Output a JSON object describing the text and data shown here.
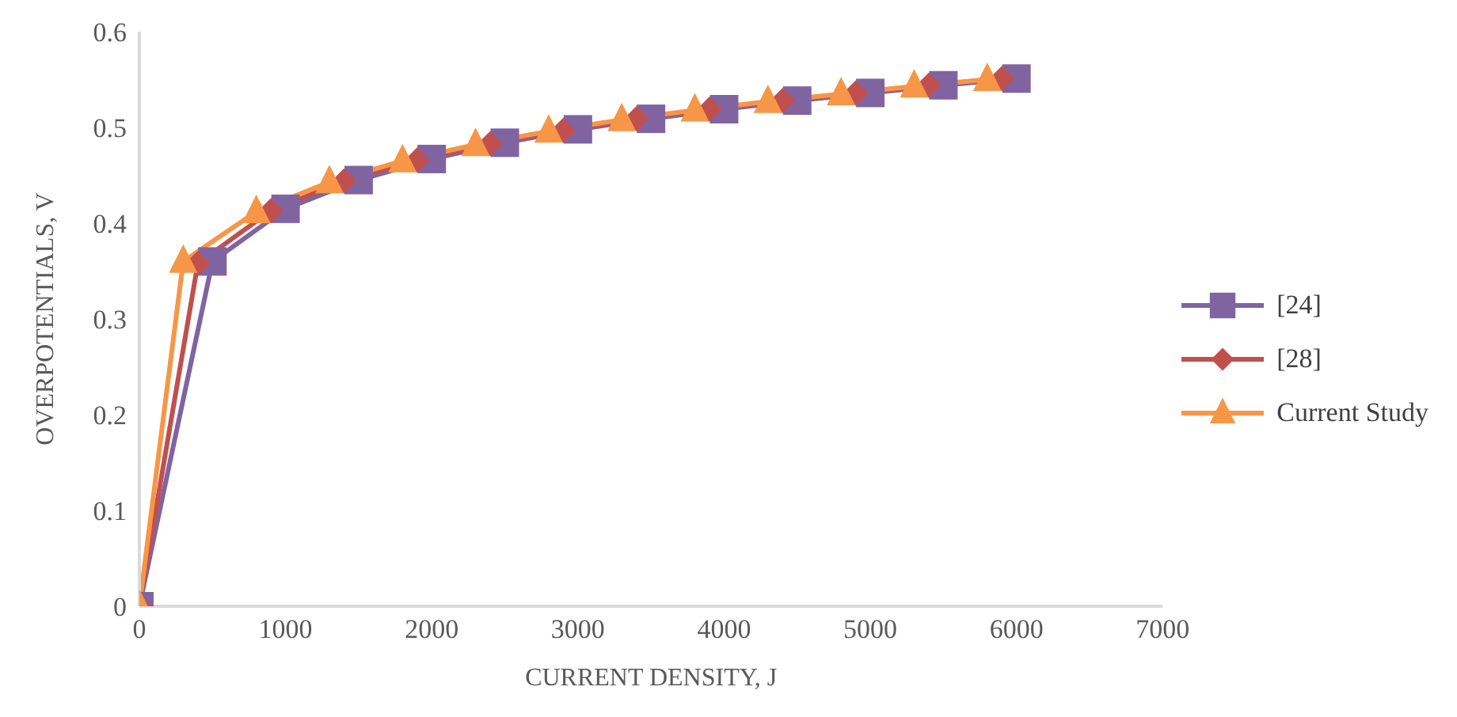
{
  "chart_data": {
    "type": "line",
    "xlabel": "CURRENT DENSITY, J",
    "ylabel": "OVERPOTENTIALS, V",
    "xlim": [
      0,
      7000
    ],
    "xticks": [
      0,
      1000,
      2000,
      3000,
      4000,
      5000,
      6000,
      7000
    ],
    "ylim": [
      0,
      0.6
    ],
    "yticks": [
      0,
      0.1,
      0.2,
      0.3,
      0.4,
      0.5,
      0.6
    ],
    "grid": false,
    "legend": "right",
    "series": [
      {
        "name": "[24]",
        "color": "#8064a2",
        "marker": "square",
        "x": [
          0,
          500,
          1000,
          1500,
          2000,
          2500,
          3000,
          3500,
          4000,
          4500,
          5000,
          5500,
          6000
        ],
        "values": [
          0,
          0.36,
          0.415,
          0.445,
          0.467,
          0.484,
          0.498,
          0.509,
          0.519,
          0.528,
          0.536,
          0.544,
          0.551
        ]
      },
      {
        "name": "[28]",
        "color": "#c0504d",
        "marker": "diamond",
        "x": [
          0,
          400,
          900,
          1400,
          1900,
          2400,
          2900,
          3400,
          3900,
          4400,
          4900,
          5400,
          5900
        ],
        "values": [
          0,
          0.358,
          0.413,
          0.444,
          0.466,
          0.483,
          0.497,
          0.509,
          0.519,
          0.528,
          0.536,
          0.544,
          0.551
        ]
      },
      {
        "name": "Current Study",
        "color": "#f79646",
        "marker": "triangle",
        "x": [
          0,
          300,
          800,
          1300,
          1800,
          2300,
          2800,
          3300,
          3800,
          4300,
          4800,
          5300,
          5800
        ],
        "values": [
          0,
          0.36,
          0.412,
          0.443,
          0.465,
          0.482,
          0.496,
          0.508,
          0.518,
          0.527,
          0.535,
          0.543,
          0.55
        ]
      }
    ]
  }
}
